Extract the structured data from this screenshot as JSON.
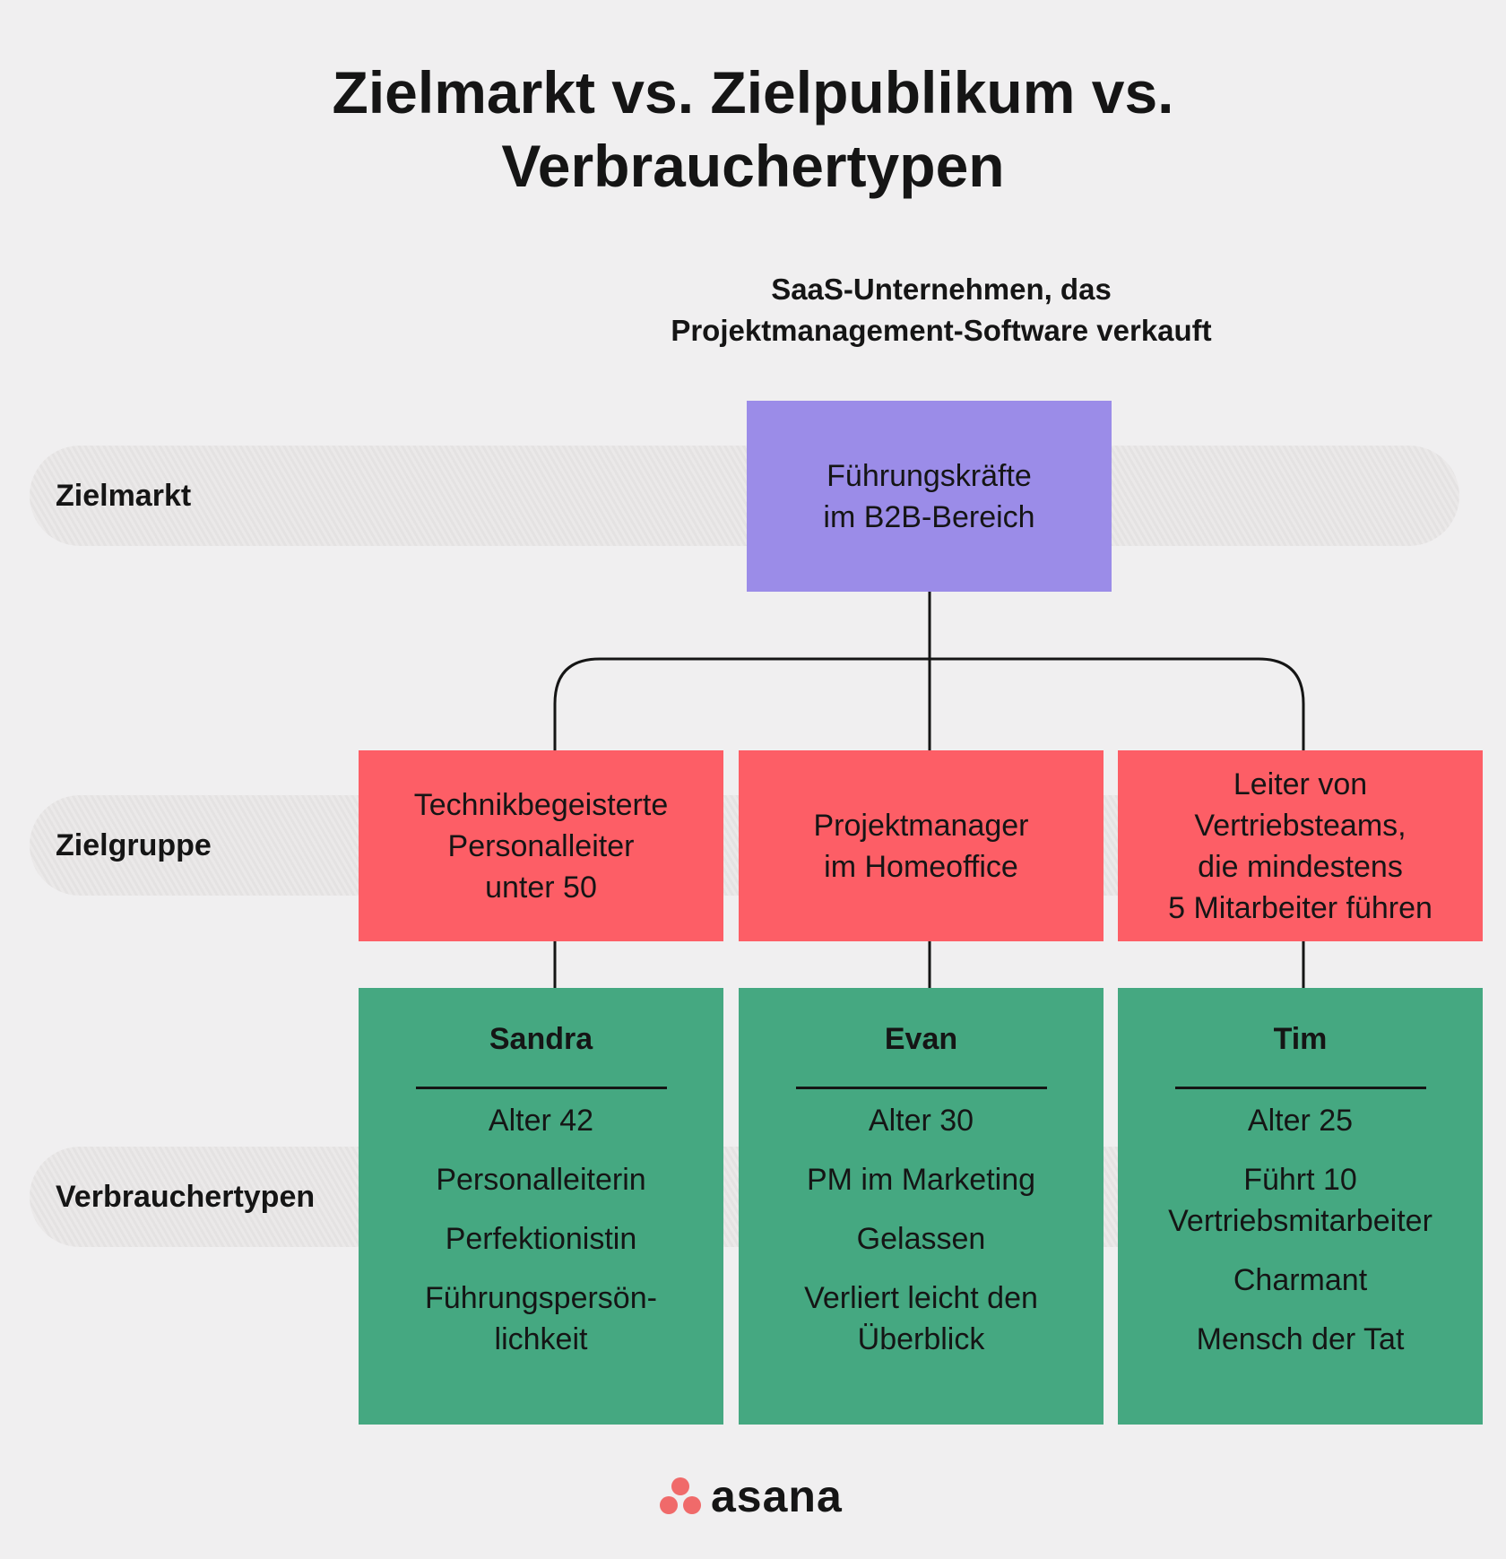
{
  "title": {
    "line1": "Zielmarkt vs. Zielpublikum vs.",
    "line2": "Verbrauchertypen"
  },
  "subtitle": {
    "line1": "SaaS-Unternehmen, das",
    "line2": "Projektmanagement-Software verkauft"
  },
  "rows": {
    "market": "Zielmarkt",
    "group": "Zielgruppe",
    "personas": "Verbrauchertypen"
  },
  "market_box": {
    "lines": [
      "Führungskräfte",
      "im B2B-Bereich"
    ]
  },
  "groups": [
    {
      "lines": [
        "Technikbegeisterte",
        "Personalleiter",
        "unter 50"
      ]
    },
    {
      "lines": [
        "Projektmanager",
        "im Homeoffice"
      ]
    },
    {
      "lines": [
        "Leiter von",
        "Vertriebsteams,",
        "die mindestens",
        "5 Mitarbeiter führen"
      ]
    }
  ],
  "personas": [
    {
      "name": "Sandra",
      "items": [
        "Alter 42",
        "Personalleiterin",
        "Perfektionistin",
        "Führungspersön-\nlichkeit"
      ]
    },
    {
      "name": "Evan",
      "items": [
        "Alter 30",
        "PM im Marketing",
        "Gelassen",
        "Verliert leicht den\nÜberblick"
      ]
    },
    {
      "name": "Tim",
      "items": [
        "Alter 25",
        "Führt 10\nVertriebsmitarbeiter",
        "Charmant",
        "Mensch der Tat"
      ]
    }
  ],
  "logo": {
    "text": "asana"
  },
  "colors": {
    "market": "#9b8ce8",
    "group": "#fd5e66",
    "persona": "#45a881",
    "logo": "#f06a6a"
  }
}
